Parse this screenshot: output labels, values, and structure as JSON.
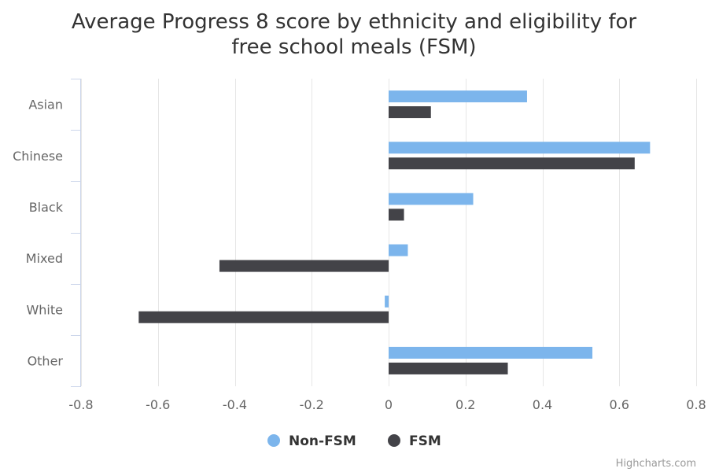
{
  "chart_data": {
    "type": "bar",
    "orientation": "horizontal",
    "title": "Average Progress 8 score by ethnicity and eligibility for free school meals (FSM)",
    "title_lines": [
      "Average Progress 8 score by ethnicity and eligibility for",
      "free school meals (FSM)"
    ],
    "categories": [
      "Asian",
      "Chinese",
      "Black",
      "Mixed",
      "White",
      "Other"
    ],
    "series": [
      {
        "name": "Non-FSM",
        "color": "#7cb5ec",
        "values": [
          0.36,
          0.68,
          0.22,
          0.05,
          -0.01,
          0.53
        ]
      },
      {
        "name": "FSM",
        "color": "#434348",
        "values": [
          0.11,
          0.64,
          0.04,
          -0.44,
          -0.65,
          0.31
        ]
      }
    ],
    "xlim": [
      -0.8,
      0.8
    ],
    "ticks": [
      "-0.8",
      "-0.6",
      "-0.4",
      "-0.2",
      "0",
      "0.2",
      "0.4",
      "0.6",
      "0.8"
    ],
    "tick_values": [
      -0.8,
      -0.6,
      -0.4,
      -0.2,
      0,
      0.2,
      0.4,
      0.6,
      0.8
    ],
    "grid": true,
    "legend_position": "bottom-center"
  },
  "credits": "Highcharts.com"
}
